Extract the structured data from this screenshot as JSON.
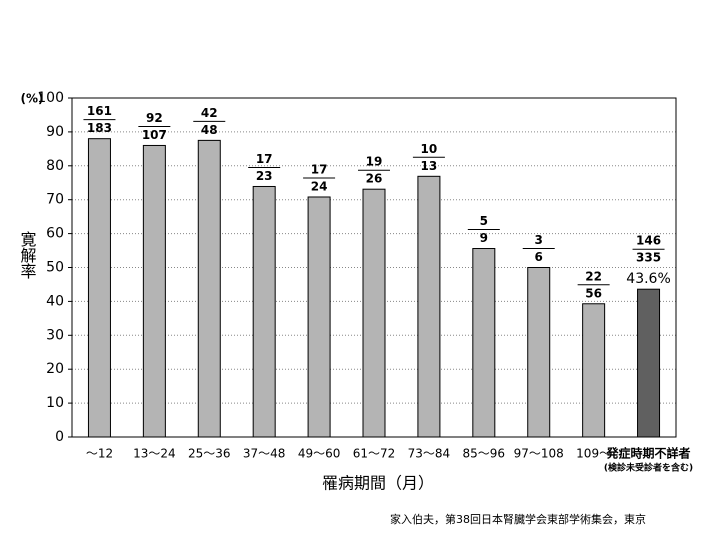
{
  "chart_data": {
    "type": "bar",
    "y_unit": "(%)",
    "y_label": "寛解率",
    "x_label": "罹病期間（月）",
    "source": "家入伯夫，第38回日本腎臓学会東部学術集会，東京",
    "categories": [
      "～12",
      "13～24",
      "25～36",
      "37～48",
      "49～60",
      "61～72",
      "73～84",
      "85～96",
      "97～108",
      "109～",
      "発症時期不詳者"
    ],
    "category_sublabel": "(検診未受診者を含む)",
    "values": [
      88.0,
      86.0,
      87.5,
      73.9,
      70.8,
      73.1,
      76.9,
      55.6,
      50.0,
      39.3,
      43.6
    ],
    "numerators": [
      161,
      92,
      42,
      17,
      17,
      19,
      10,
      5,
      3,
      22,
      146
    ],
    "denominators": [
      183,
      107,
      48,
      23,
      24,
      26,
      13,
      9,
      6,
      56,
      335
    ],
    "value_labels": [
      null,
      null,
      null,
      null,
      null,
      null,
      null,
      null,
      null,
      null,
      "43.6%"
    ],
    "colors": [
      "#b4b4b4",
      "#b4b4b4",
      "#b4b4b4",
      "#b4b4b4",
      "#b4b4b4",
      "#b4b4b4",
      "#b4b4b4",
      "#b4b4b4",
      "#b4b4b4",
      "#b4b4b4",
      "#606060"
    ],
    "ylim": [
      0,
      100
    ],
    "yticks": [
      0,
      10,
      20,
      30,
      40,
      50,
      60,
      70,
      80,
      90,
      100
    ],
    "grid": true
  }
}
